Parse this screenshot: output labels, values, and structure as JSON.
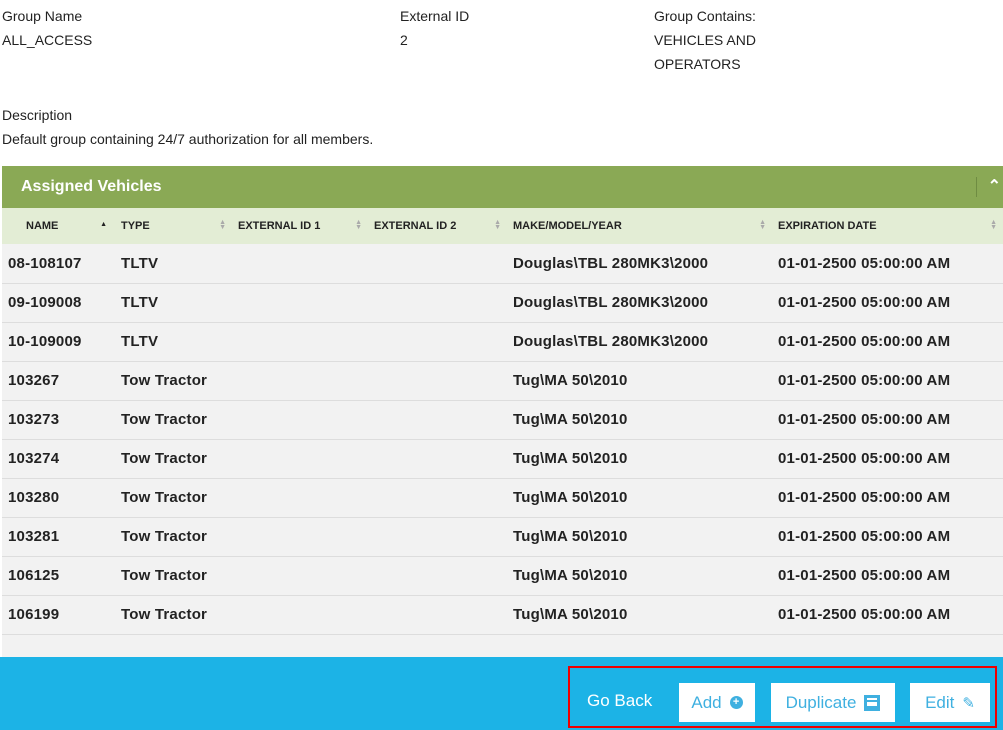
{
  "details": {
    "group_name_label": "Group Name",
    "group_name": "ALL_ACCESS",
    "external_id_label": "External ID",
    "external_id": "2",
    "contains_label": "Group Contains:",
    "contains_line1": "VEHICLES AND",
    "contains_line2": "OPERATORS",
    "description_label": "Description",
    "description": "Default group containing 24/7 authorization for all members."
  },
  "panel": {
    "title": "Assigned Vehicles",
    "columns": [
      "NAME",
      "TYPE",
      "EXTERNAL ID 1",
      "EXTERNAL ID 2",
      "MAKE/MODEL/YEAR",
      "EXPIRATION DATE"
    ],
    "rows": [
      [
        "08-108107",
        "TLTV",
        "",
        "",
        "Douglas\\TBL 280MK3\\2000",
        "01-01-2500 05:00:00 AM"
      ],
      [
        "09-109008",
        "TLTV",
        "",
        "",
        "Douglas\\TBL 280MK3\\2000",
        "01-01-2500 05:00:00 AM"
      ],
      [
        "10-109009",
        "TLTV",
        "",
        "",
        "Douglas\\TBL 280MK3\\2000",
        "01-01-2500 05:00:00 AM"
      ],
      [
        "103267",
        "Tow Tractor",
        "",
        "",
        "Tug\\MA 50\\2010",
        "01-01-2500 05:00:00 AM"
      ],
      [
        "103273",
        "Tow Tractor",
        "",
        "",
        "Tug\\MA 50\\2010",
        "01-01-2500 05:00:00 AM"
      ],
      [
        "103274",
        "Tow Tractor",
        "",
        "",
        "Tug\\MA 50\\2010",
        "01-01-2500 05:00:00 AM"
      ],
      [
        "103280",
        "Tow Tractor",
        "",
        "",
        "Tug\\MA 50\\2010",
        "01-01-2500 05:00:00 AM"
      ],
      [
        "103281",
        "Tow Tractor",
        "",
        "",
        "Tug\\MA 50\\2010",
        "01-01-2500 05:00:00 AM"
      ],
      [
        "106125",
        "Tow Tractor",
        "",
        "",
        "Tug\\MA 50\\2010",
        "01-01-2500 05:00:00 AM"
      ],
      [
        "106199",
        "Tow Tractor",
        "",
        "",
        "Tug\\MA 50\\2010",
        "01-01-2500 05:00:00 AM"
      ]
    ]
  },
  "footer": {
    "go_back": "Go Back",
    "add": "Add",
    "duplicate": "Duplicate",
    "edit": "Edit"
  },
  "colors": {
    "header_green": "#8aa955",
    "footer_blue": "#1cb3e6",
    "highlight": "#e00000"
  }
}
